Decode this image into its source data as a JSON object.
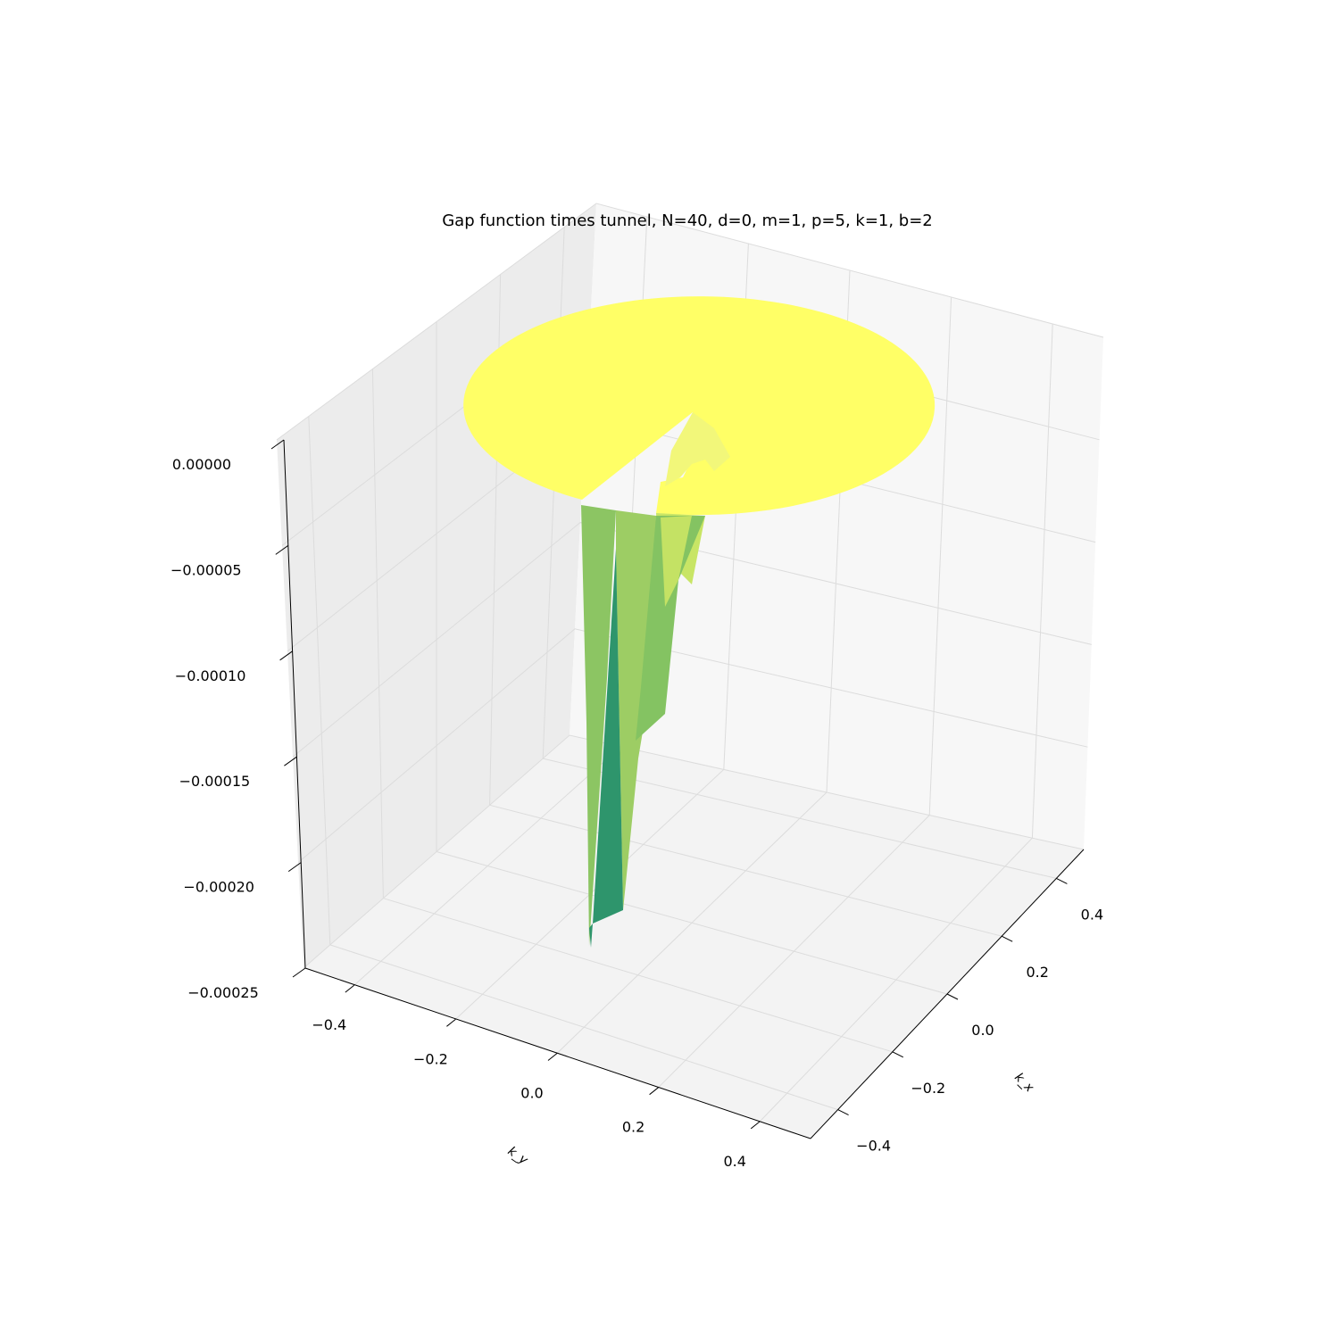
{
  "chart_data": {
    "type": "surface",
    "title": "Gap function times tunnel, N=40, d=0, m=1, p=5, k=1, b=2",
    "xlabel": "k_x",
    "ylabel": "k_y",
    "zlabel": "",
    "colormap": "summer",
    "grid": true,
    "x_ticks": [
      "−0.4",
      "−0.2",
      "0.0",
      "0.2",
      "0.4"
    ],
    "y_ticks": [
      "−0.4",
      "−0.2",
      "0.0",
      "0.2",
      "0.4"
    ],
    "z_ticks": [
      "0.00000",
      "−0.00005",
      "−0.00010",
      "−0.00015",
      "−0.00020",
      "−0.00025"
    ],
    "xlim": [
      -0.5,
      0.5
    ],
    "ylim": [
      -0.5,
      0.5
    ],
    "zlim": [
      -0.00025,
      0.0
    ],
    "surface": {
      "plateau_value": 0.0,
      "plateau_radius": 0.5,
      "missing_wedge": true,
      "minimum_value": -0.000243
    }
  }
}
